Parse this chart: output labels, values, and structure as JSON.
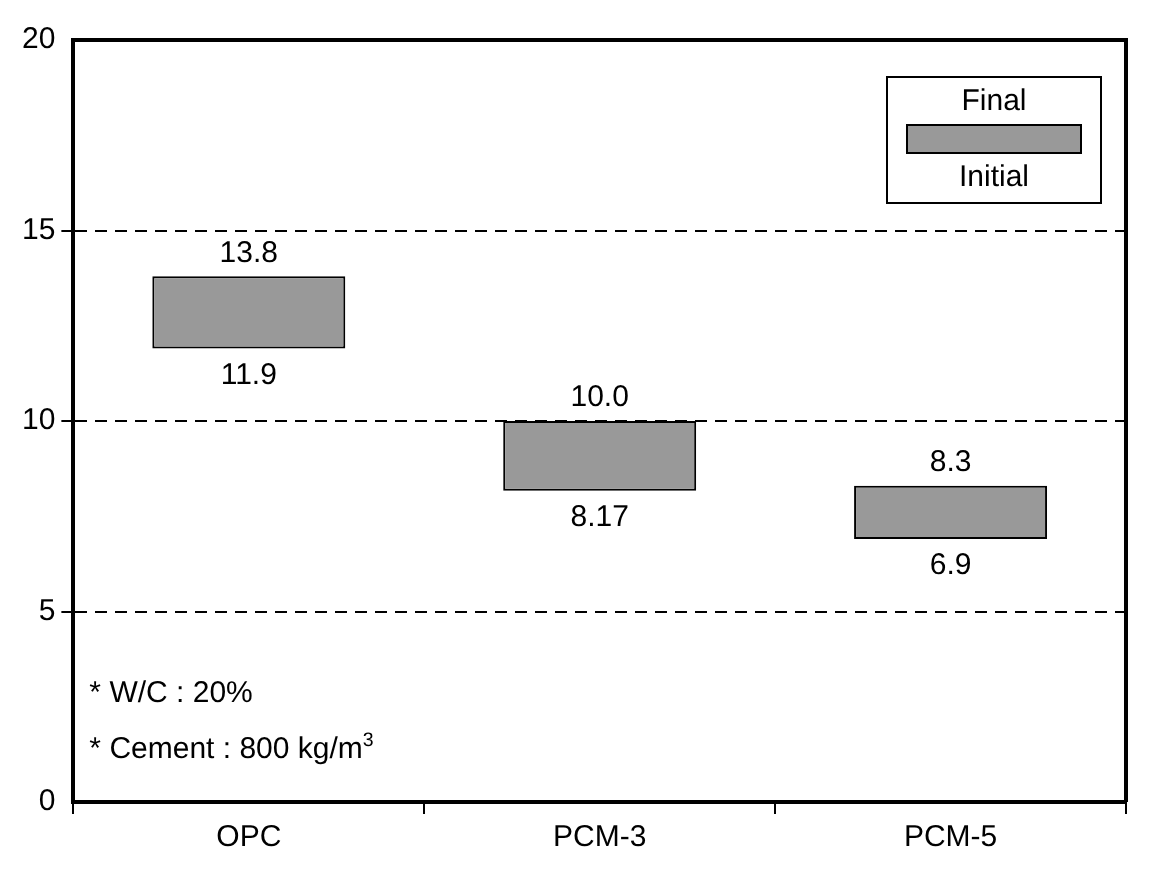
{
  "chart_data": {
    "type": "bar",
    "categories": [
      "OPC",
      "PCM-3",
      "PCM-5"
    ],
    "series": [
      {
        "color": "#999999",
        "values": [
          1.9,
          1.83,
          1.4
        ],
        "base": [
          11.9,
          8.17,
          6.9
        ]
      }
    ],
    "ylim": [
      0,
      20
    ],
    "yticks": [
      0,
      5,
      10,
      15,
      20
    ],
    "grid": "y",
    "line_style": "dashed",
    "annotations": [
      "13.8",
      "11.9",
      "10.0",
      "8.17",
      "8.3",
      "6.9",
      "Final",
      "Initial",
      "* W/C : 20%",
      "* Cement : 800 kg/m$^{3}$"
    ]
  }
}
